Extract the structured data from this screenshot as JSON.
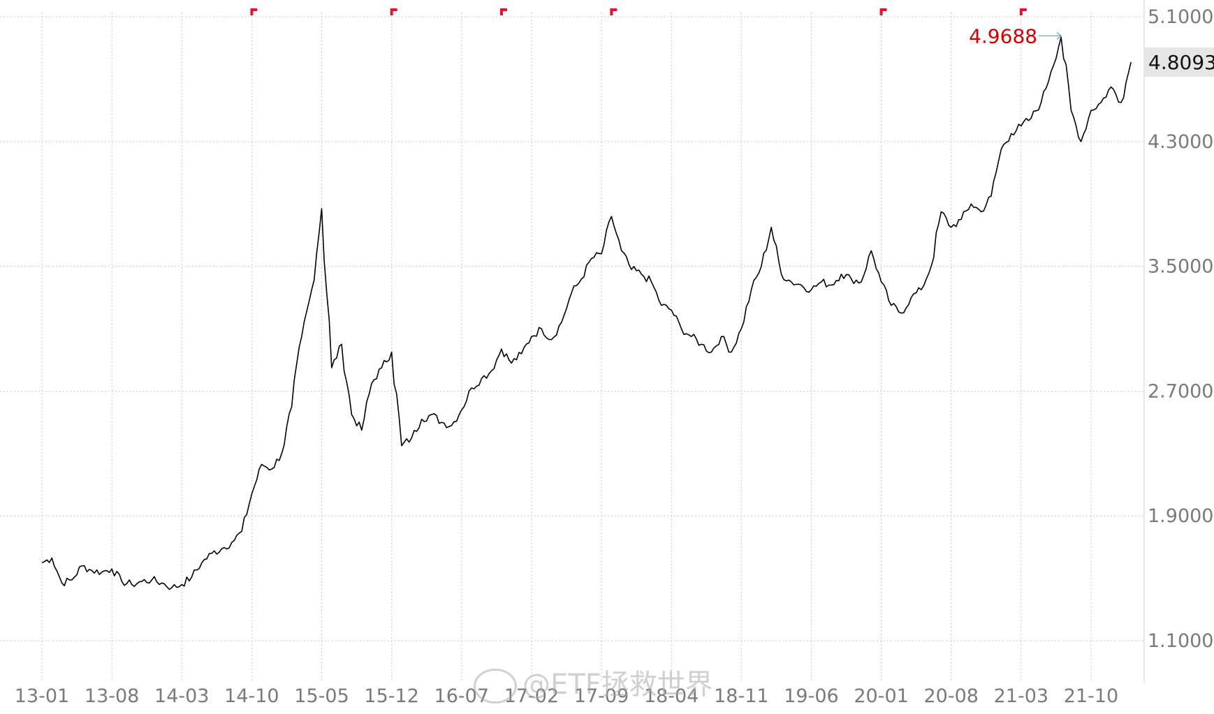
{
  "chart_data": {
    "type": "line",
    "title": "",
    "xlabel": "",
    "ylabel": "",
    "ylim": [
      1.1,
      5.1
    ],
    "grid": true,
    "colors": {
      "line": "#000000",
      "marker": "#e8102e",
      "annotation": "#cc0000",
      "pointer": "#4aa3b8",
      "last_value_bg": "#e6e6e6"
    },
    "y_ticks": [
      "5.1000",
      "4.3000",
      "3.5000",
      "2.7000",
      "1.9000",
      "1.1000"
    ],
    "y_tick_values": [
      5.1,
      4.3,
      3.5,
      2.7,
      1.9,
      1.1
    ],
    "x_ticks": [
      "13-01",
      "13-08",
      "14-03",
      "14-10",
      "15-05",
      "15-12",
      "16-07",
      "17-02",
      "17-09",
      "18-04",
      "18-11",
      "19-06",
      "20-01",
      "20-08",
      "21-03",
      "21-10"
    ],
    "x_tick_values": [
      "2013-01",
      "2013-08",
      "2014-03",
      "2014-10",
      "2015-05",
      "2015-12",
      "2016-07",
      "2017-02",
      "2017-09",
      "2018-04",
      "2018-11",
      "2019-06",
      "2020-01",
      "2020-08",
      "2021-03",
      "2021-10"
    ],
    "x_range": [
      "2013-01",
      "2022-03"
    ],
    "max_annotation": {
      "label": "4.9688",
      "date": "2021-07",
      "value": 4.9688
    },
    "last_value": {
      "label": "4.8093",
      "value": 4.8093
    },
    "markers": [
      "2014-10",
      "2015-12",
      "2016-11",
      "2017-10",
      "2020-01",
      "2021-03"
    ],
    "series": [
      {
        "points": [
          [
            "2013-01",
            1.6
          ],
          [
            "2013-02",
            1.63
          ],
          [
            "2013-03",
            1.47
          ],
          [
            "2013-04",
            1.49
          ],
          [
            "2013-05",
            1.58
          ],
          [
            "2013-06",
            1.55
          ],
          [
            "2013-07",
            1.54
          ],
          [
            "2013-08",
            1.56
          ],
          [
            "2013-09",
            1.48
          ],
          [
            "2013-10",
            1.46
          ],
          [
            "2013-11",
            1.48
          ],
          [
            "2013-12",
            1.49
          ],
          [
            "2014-01",
            1.47
          ],
          [
            "2014-02",
            1.44
          ],
          [
            "2014-03",
            1.46
          ],
          [
            "2014-04",
            1.51
          ],
          [
            "2014-05",
            1.6
          ],
          [
            "2014-06",
            1.66
          ],
          [
            "2014-07",
            1.69
          ],
          [
            "2014-08",
            1.73
          ],
          [
            "2014-09",
            1.8
          ],
          [
            "2014-10",
            2.04
          ],
          [
            "2014-11",
            2.23
          ],
          [
            "2014-12",
            2.2
          ],
          [
            "2015-01",
            2.3
          ],
          [
            "2015-02",
            2.6
          ],
          [
            "2015-03",
            3.05
          ],
          [
            "2015-04",
            3.35
          ],
          [
            "2015-05",
            3.87
          ],
          [
            "2015-06",
            2.85
          ],
          [
            "2015-07",
            3.0
          ],
          [
            "2015-08",
            2.55
          ],
          [
            "2015-09",
            2.45
          ],
          [
            "2015-10",
            2.75
          ],
          [
            "2015-11",
            2.85
          ],
          [
            "2015-12",
            2.95
          ],
          [
            "2016-01",
            2.35
          ],
          [
            "2016-02",
            2.4
          ],
          [
            "2016-03",
            2.52
          ],
          [
            "2016-04",
            2.55
          ],
          [
            "2016-05",
            2.5
          ],
          [
            "2016-06",
            2.48
          ],
          [
            "2016-07",
            2.58
          ],
          [
            "2016-08",
            2.72
          ],
          [
            "2016-09",
            2.78
          ],
          [
            "2016-10",
            2.83
          ],
          [
            "2016-11",
            2.97
          ],
          [
            "2016-12",
            2.88
          ],
          [
            "2017-01",
            2.94
          ],
          [
            "2017-02",
            3.05
          ],
          [
            "2017-03",
            3.1
          ],
          [
            "2017-04",
            3.03
          ],
          [
            "2017-05",
            3.14
          ],
          [
            "2017-06",
            3.33
          ],
          [
            "2017-07",
            3.42
          ],
          [
            "2017-08",
            3.55
          ],
          [
            "2017-09",
            3.58
          ],
          [
            "2017-10",
            3.82
          ],
          [
            "2017-11",
            3.6
          ],
          [
            "2017-12",
            3.48
          ],
          [
            "2018-01",
            3.45
          ],
          [
            "2018-02",
            3.4
          ],
          [
            "2018-03",
            3.25
          ],
          [
            "2018-04",
            3.22
          ],
          [
            "2018-05",
            3.1
          ],
          [
            "2018-06",
            3.05
          ],
          [
            "2018-07",
            3.0
          ],
          [
            "2018-08",
            2.95
          ],
          [
            "2018-09",
            3.05
          ],
          [
            "2018-10",
            2.95
          ],
          [
            "2018-11",
            3.1
          ],
          [
            "2018-12",
            3.35
          ],
          [
            "2019-01",
            3.5
          ],
          [
            "2019-02",
            3.75
          ],
          [
            "2019-03",
            3.45
          ],
          [
            "2019-04",
            3.4
          ],
          [
            "2019-05",
            3.38
          ],
          [
            "2019-06",
            3.35
          ],
          [
            "2019-07",
            3.4
          ],
          [
            "2019-08",
            3.38
          ],
          [
            "2019-09",
            3.45
          ],
          [
            "2019-10",
            3.42
          ],
          [
            "2019-11",
            3.4
          ],
          [
            "2019-12",
            3.6
          ],
          [
            "2020-01",
            3.4
          ],
          [
            "2020-02",
            3.25
          ],
          [
            "2020-03",
            3.2
          ],
          [
            "2020-04",
            3.3
          ],
          [
            "2020-05",
            3.35
          ],
          [
            "2020-06",
            3.5
          ],
          [
            "2020-07",
            3.85
          ],
          [
            "2020-08",
            3.75
          ],
          [
            "2020-09",
            3.8
          ],
          [
            "2020-10",
            3.9
          ],
          [
            "2020-11",
            3.85
          ],
          [
            "2020-12",
            3.95
          ],
          [
            "2021-01",
            4.25
          ],
          [
            "2021-02",
            4.35
          ],
          [
            "2021-03",
            4.4
          ],
          [
            "2021-04",
            4.45
          ],
          [
            "2021-05",
            4.55
          ],
          [
            "2021-06",
            4.75
          ],
          [
            "2021-07",
            4.9688
          ],
          [
            "2021-08",
            4.5
          ],
          [
            "2021-09",
            4.3
          ],
          [
            "2021-10",
            4.5
          ],
          [
            "2021-11",
            4.55
          ],
          [
            "2021-12",
            4.65
          ],
          [
            "2022-01",
            4.55
          ],
          [
            "2022-02",
            4.8093
          ]
        ]
      }
    ]
  },
  "watermark": {
    "text": "@ETF拯救世界",
    "icon": "weibo-icon"
  }
}
